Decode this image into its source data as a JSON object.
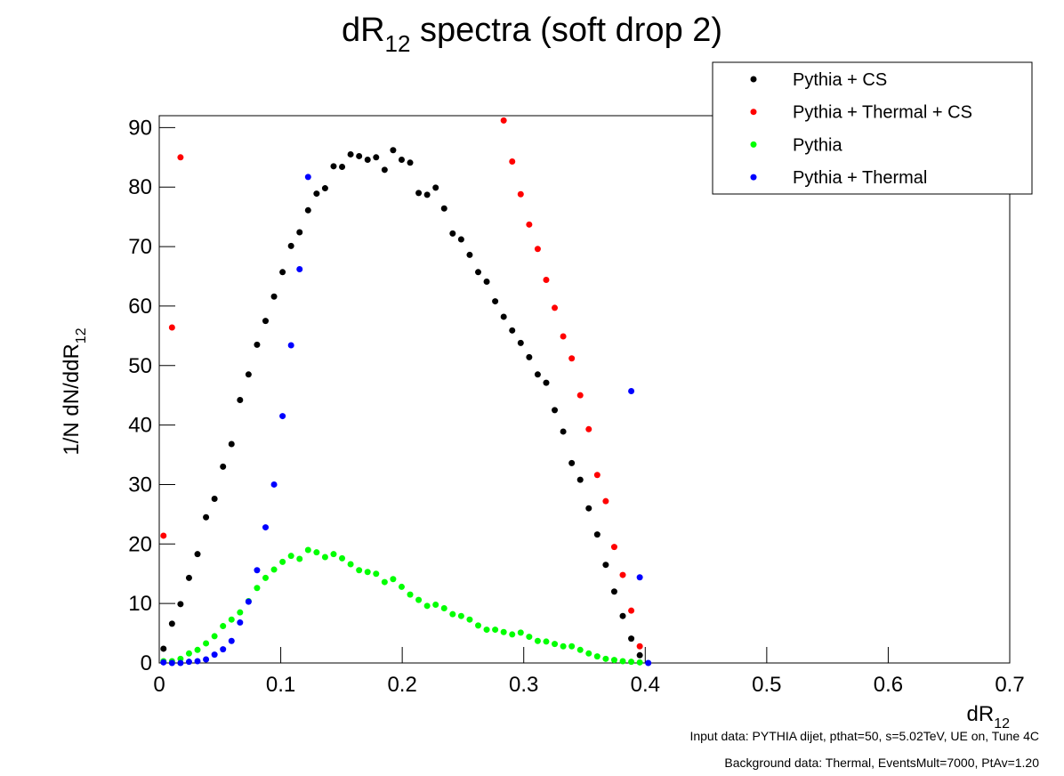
{
  "chart_data": {
    "type": "scatter",
    "title": {
      "main": "dR",
      "sub": "12",
      "rest": " spectra (soft drop 2)"
    },
    "x_label": {
      "main": "dR",
      "sub": "12"
    },
    "y_label": {
      "main": "1/N dN/ddR",
      "sub": "12"
    },
    "notes": [
      "Input data: PYTHIA dijet, pthat=50, s=5.02TeV, UE on, Tune 4C",
      "Background data: Thermal, EventsMult=7000, PtAv=1.20"
    ],
    "xlim": [
      0,
      0.7
    ],
    "ylim": [
      0,
      92
    ],
    "xticks": [
      0,
      0.1,
      0.2,
      0.3,
      0.4,
      0.5,
      0.6,
      0.7
    ],
    "yticks": [
      0,
      10,
      20,
      30,
      40,
      50,
      60,
      70,
      80,
      90
    ],
    "legend": "top right",
    "x": [
      0.0035,
      0.0105,
      0.0175,
      0.0245,
      0.0315,
      0.0385,
      0.0455,
      0.0525,
      0.0595,
      0.0665,
      0.0735,
      0.0805,
      0.0875,
      0.0945,
      0.1015,
      0.1085,
      0.1155,
      0.1225,
      0.1295,
      0.1365,
      0.1435,
      0.1505,
      0.1575,
      0.1645,
      0.1715,
      0.1785,
      0.1855,
      0.1925,
      0.1995,
      0.2065,
      0.2135,
      0.2205,
      0.2275,
      0.2345,
      0.2415,
      0.2485,
      0.2555,
      0.2625,
      0.2695,
      0.2765,
      0.2835,
      0.2905,
      0.2975,
      0.3045,
      0.3115,
      0.3185,
      0.3255,
      0.3325,
      0.3395,
      0.3465,
      0.3535,
      0.3605,
      0.3675,
      0.3745,
      0.3815,
      0.3885,
      0.3955,
      0.4025
    ],
    "series": [
      {
        "name": "Pythia + CS",
        "color": "#000000",
        "values": [
          2.4,
          6.6,
          9.9,
          14.3,
          18.3,
          24.5,
          27.6,
          33.0,
          36.8,
          44.2,
          48.5,
          53.5,
          57.5,
          61.6,
          65.7,
          70.1,
          72.4,
          76.1,
          78.9,
          79.8,
          83.5,
          83.4,
          85.5,
          85.2,
          84.6,
          85.0,
          82.9,
          86.2,
          84.6,
          84.1,
          79.0,
          78.7,
          79.9,
          76.4,
          72.2,
          71.2,
          68.6,
          65.7,
          64.1,
          60.8,
          58.2,
          55.9,
          53.8,
          51.4,
          48.5,
          47.1,
          42.5,
          38.9,
          33.6,
          30.8,
          26.0,
          21.6,
          16.5,
          12.0,
          7.9,
          4.1,
          1.3,
          null
        ]
      },
      {
        "name": "Pythia + Thermal + CS",
        "color": "#ff0000",
        "values": [
          21.4,
          56.4,
          85.0,
          null,
          null,
          null,
          null,
          null,
          null,
          null,
          null,
          null,
          null,
          null,
          null,
          null,
          null,
          null,
          null,
          null,
          null,
          null,
          null,
          null,
          null,
          null,
          null,
          null,
          null,
          null,
          null,
          null,
          null,
          null,
          null,
          null,
          null,
          null,
          null,
          null,
          91.2,
          84.3,
          78.8,
          73.7,
          69.6,
          64.4,
          59.7,
          54.9,
          51.2,
          45.0,
          39.3,
          31.6,
          27.2,
          19.5,
          14.8,
          8.8,
          2.8,
          null
        ]
      },
      {
        "name": "Pythia",
        "color": "#00ff00",
        "values": [
          0.3,
          0.3,
          0.7,
          1.6,
          2.2,
          3.3,
          4.5,
          6.2,
          7.3,
          8.5,
          10.4,
          12.6,
          14.3,
          15.7,
          17.0,
          18.0,
          17.5,
          19.0,
          18.6,
          17.8,
          18.3,
          17.6,
          16.6,
          15.6,
          15.3,
          15.0,
          13.6,
          14.1,
          12.8,
          11.5,
          10.6,
          9.6,
          9.8,
          9.2,
          8.2,
          7.9,
          7.3,
          6.3,
          5.6,
          5.6,
          5.2,
          4.8,
          5.1,
          4.4,
          3.7,
          3.6,
          3.2,
          2.8,
          2.8,
          2.2,
          1.6,
          1.1,
          0.7,
          0.5,
          0.3,
          0.2,
          0.1,
          null
        ]
      },
      {
        "name": "Pythia + Thermal",
        "color": "#0000ff",
        "values": [
          0.1,
          0.0,
          0.0,
          0.2,
          0.3,
          0.6,
          1.4,
          2.3,
          3.7,
          6.8,
          10.3,
          15.6,
          22.8,
          30.0,
          41.5,
          53.4,
          66.2,
          81.7,
          null,
          null,
          null,
          null,
          null,
          null,
          null,
          null,
          null,
          null,
          null,
          null,
          null,
          null,
          null,
          null,
          null,
          null,
          null,
          null,
          null,
          null,
          null,
          null,
          null,
          null,
          null,
          null,
          null,
          null,
          null,
          null,
          null,
          null,
          null,
          null,
          null,
          45.7,
          14.4,
          0.0
        ]
      }
    ]
  }
}
